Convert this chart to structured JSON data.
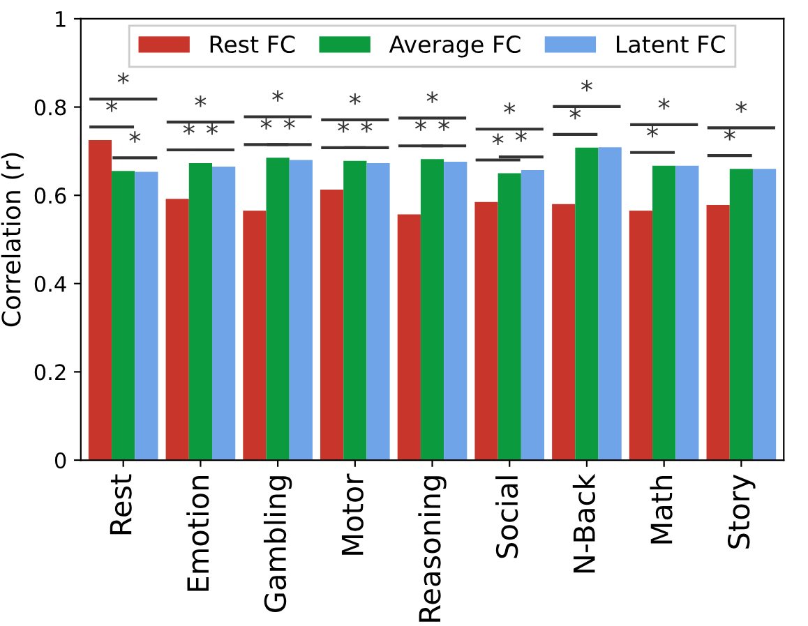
{
  "chart_data": {
    "type": "bar",
    "ylabel": "Correlation (r)",
    "categories": [
      "Rest",
      "Emotion",
      "Gambling",
      "Motor",
      "Reasoning",
      "Social",
      "N-Back",
      "Math",
      "Story"
    ],
    "series": [
      {
        "name": "Rest FC",
        "color": "#c8352b",
        "values": [
          0.725,
          0.592,
          0.565,
          0.613,
          0.557,
          0.585,
          0.58,
          0.565,
          0.578
        ]
      },
      {
        "name": "Average FC",
        "color": "#0c9a3e",
        "values": [
          0.655,
          0.673,
          0.685,
          0.678,
          0.682,
          0.65,
          0.708,
          0.667,
          0.66
        ]
      },
      {
        "name": "Latent FC",
        "color": "#6fa5e8",
        "values": [
          0.653,
          0.665,
          0.68,
          0.673,
          0.676,
          0.657,
          0.709,
          0.667,
          0.66
        ]
      }
    ],
    "ylim": [
      0,
      1
    ],
    "yticks": [
      0,
      0.2,
      0.4,
      0.6,
      0.8,
      1
    ],
    "grid": false,
    "legend": "top",
    "annotations": [
      "*",
      "*",
      "*",
      "*",
      "*",
      "*",
      "*",
      "*",
      "*",
      "*",
      "*",
      "*",
      "*",
      "*",
      "*",
      "*",
      "*",
      "*",
      "*",
      "*",
      "*",
      "*",
      "*",
      "*"
    ]
  }
}
